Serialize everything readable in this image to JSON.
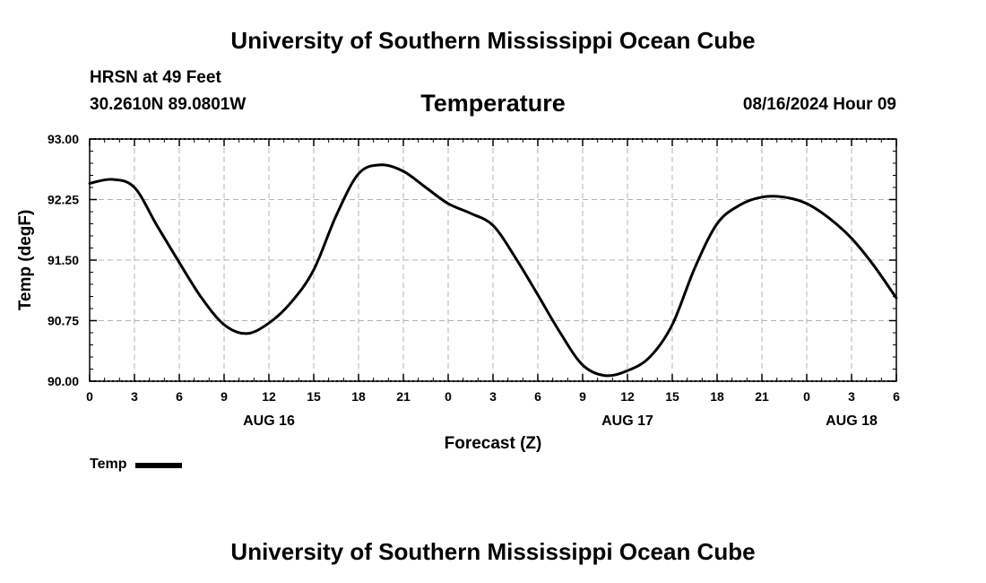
{
  "header": {
    "title": "University of Southern Mississippi Ocean Cube",
    "station": "HRSN at 49 Feet",
    "coords": "30.2610N  89.0801W",
    "issued": "08/16/2024 Hour 09",
    "footer_title": "University of Southern Mississippi Ocean Cube"
  },
  "legend": {
    "label": "Temp"
  },
  "chart_data": {
    "type": "line",
    "title": "Temperature",
    "xlabel": "Forecast (Z)",
    "ylabel": "Temp (degF)",
    "ylim": [
      90.0,
      93.0
    ],
    "yticks": [
      "90.00",
      "90.75",
      "91.50",
      "92.25",
      "93.00"
    ],
    "xlim": [
      0,
      54
    ],
    "xticks": [
      "0",
      "3",
      "6",
      "9",
      "12",
      "15",
      "18",
      "21",
      "0",
      "3",
      "6",
      "9",
      "12",
      "15",
      "18",
      "21",
      "0",
      "3",
      "6"
    ],
    "date_labels": [
      {
        "x": 12,
        "label": "AUG 16"
      },
      {
        "x": 36,
        "label": "AUG 17"
      },
      {
        "x": 51,
        "label": "AUG 18"
      }
    ],
    "grid": true,
    "legend_position": "bottom-left",
    "series": [
      {
        "name": "Temp",
        "color": "#000000",
        "x": [
          0,
          1.5,
          3,
          4.5,
          6,
          7.5,
          9,
          10.5,
          12,
          13.5,
          15,
          16.5,
          18,
          19.5,
          21,
          22.5,
          24,
          25.5,
          27,
          28.5,
          30,
          31.5,
          33,
          34.5,
          36,
          37.5,
          39,
          40.5,
          42,
          43.5,
          45,
          46.5,
          48,
          49.5,
          51,
          52.5,
          54
        ],
        "values": [
          92.45,
          92.5,
          92.4,
          91.93,
          91.47,
          91.03,
          90.7,
          90.59,
          90.72,
          90.98,
          91.38,
          92.05,
          92.57,
          92.68,
          92.6,
          92.4,
          92.2,
          92.08,
          91.93,
          91.53,
          91.07,
          90.6,
          90.2,
          90.07,
          90.13,
          90.3,
          90.7,
          91.4,
          91.95,
          92.18,
          92.28,
          92.28,
          92.2,
          92.02,
          91.77,
          91.43,
          91.03
        ]
      }
    ]
  }
}
